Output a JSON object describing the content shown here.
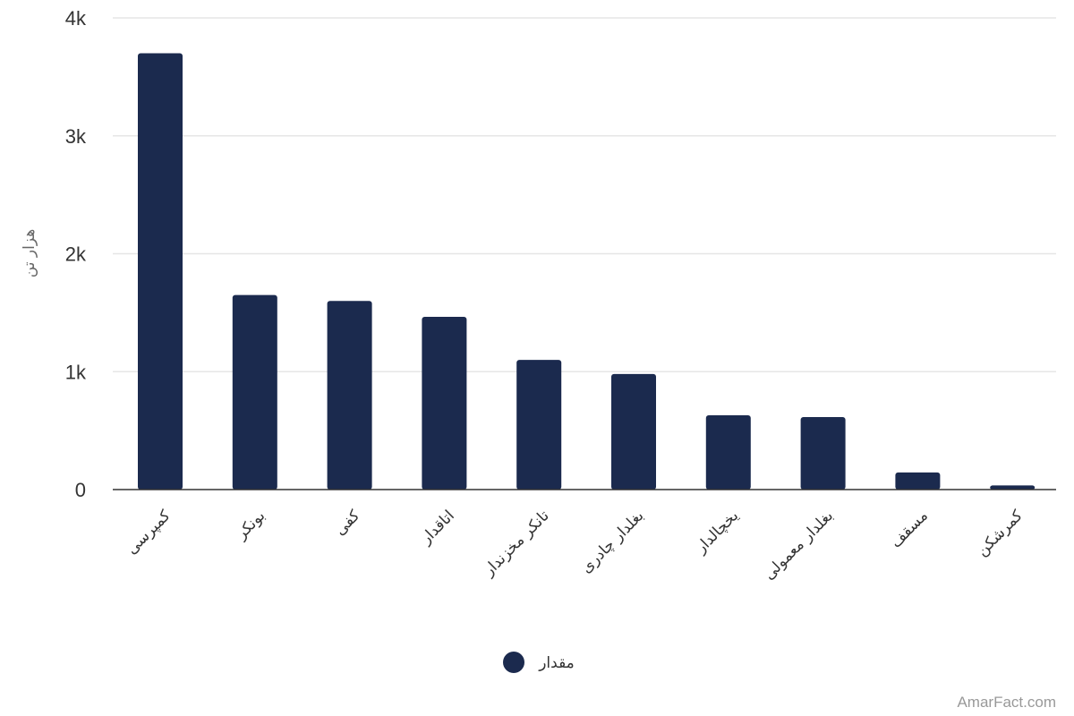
{
  "chart_data": {
    "type": "bar",
    "title": "",
    "xlabel": "",
    "ylabel": "هزار تن",
    "ylim": [
      0,
      4000
    ],
    "yticks": [
      {
        "value": 0,
        "label": "0"
      },
      {
        "value": 1000,
        "label": "1k"
      },
      {
        "value": 2000,
        "label": "2k"
      },
      {
        "value": 3000,
        "label": "3k"
      },
      {
        "value": 4000,
        "label": "4k"
      }
    ],
    "grid": true,
    "legend_position": "bottom-center",
    "categories": [
      "کمپرسی",
      "بونکر",
      "کفی",
      "اتاقدار",
      "تانکر مخزندار",
      "بغلدار چادری",
      "یخچالدار",
      "بغلدار معمولی",
      "مسقف",
      "کمرشکن"
    ],
    "series": [
      {
        "name": "مقدار",
        "color": "#1b2a4e",
        "values": [
          3700,
          1650,
          1600,
          1465,
          1100,
          980,
          630,
          615,
          145,
          35
        ]
      }
    ]
  },
  "credit": "AmarFact.com"
}
